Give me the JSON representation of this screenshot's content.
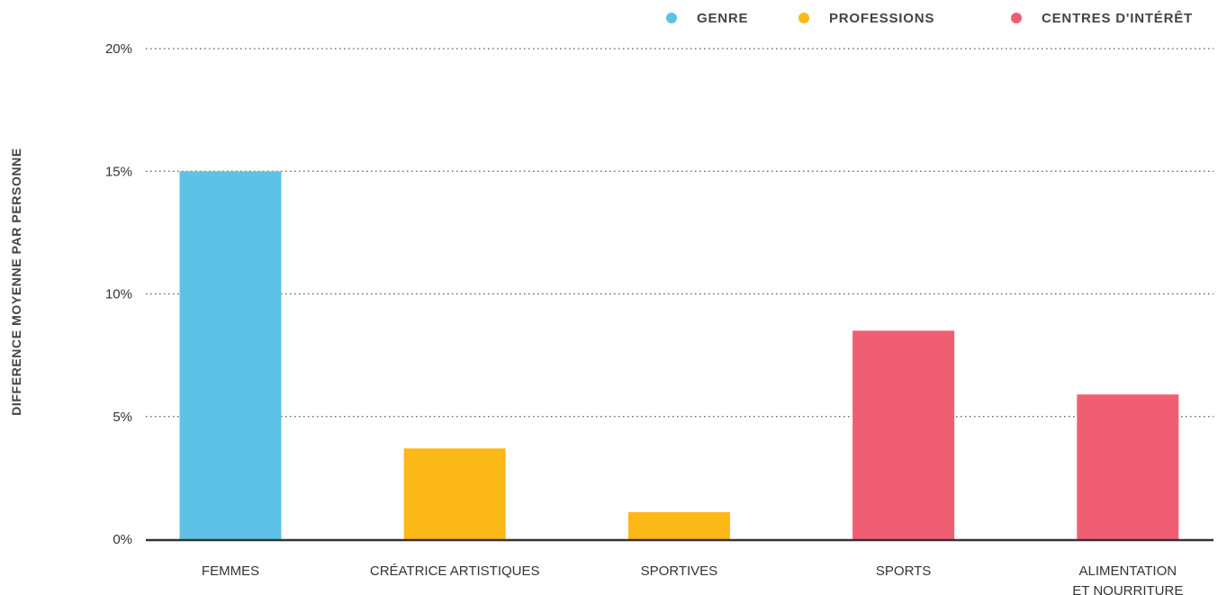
{
  "chart_data": {
    "type": "bar",
    "ylabel": "DIFFERENCE MOYENNE PAR PERSONNE",
    "ylim": [
      0,
      20
    ],
    "yticks": [
      {
        "value": 0,
        "label": "0%"
      },
      {
        "value": 5,
        "label": "5%"
      },
      {
        "value": 10,
        "label": "10%"
      },
      {
        "value": 15,
        "label": "15%"
      },
      {
        "value": 20,
        "label": "20%"
      }
    ],
    "grid": true,
    "legend_position": "top-right",
    "legend": [
      {
        "name": "GENRE",
        "color": "#5ec2e6"
      },
      {
        "name": "PROFESSIONS",
        "color": "#fbb816"
      },
      {
        "name": "CENTRES D'INTÉRÊT",
        "color": "#f05e73"
      }
    ],
    "categories": [
      {
        "lines": [
          "FEMMES"
        ],
        "value": 15,
        "group": 0
      },
      {
        "lines": [
          "CRÉATRICE ARTISTIQUES"
        ],
        "value": 3.7,
        "group": 1
      },
      {
        "lines": [
          "SPORTIVES"
        ],
        "value": 1.1,
        "group": 1
      },
      {
        "lines": [
          "SPORTS"
        ],
        "value": 8.5,
        "group": 2
      },
      {
        "lines": [
          "ALIMENTATION",
          "ET NOURRITURE"
        ],
        "value": 5.9,
        "group": 2
      }
    ]
  }
}
